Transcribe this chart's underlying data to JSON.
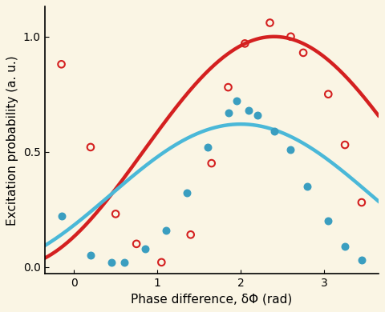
{
  "background_color": "#faf5e4",
  "red_line_color": "#d42020",
  "blue_line_color": "#4ab8d8",
  "red_marker_color": "#d42020",
  "blue_marker_color": "#3a9ec0",
  "red_A": 0.5,
  "red_B": 0.5,
  "red_peak": 2.4,
  "blue_A": 0.31,
  "blue_B": 0.31,
  "blue_peak": 2.0,
  "red_data_x": [
    -0.15,
    0.2,
    0.5,
    0.75,
    1.05,
    1.4,
    1.65,
    1.85,
    2.05,
    2.35,
    2.6,
    2.75,
    3.05,
    3.25,
    3.45
  ],
  "red_data_y": [
    0.88,
    0.52,
    0.23,
    0.1,
    0.02,
    0.14,
    0.45,
    0.78,
    0.97,
    1.06,
    1.0,
    0.93,
    0.75,
    0.53,
    0.28
  ],
  "blue_data_x": [
    -0.15,
    0.2,
    0.45,
    0.6,
    0.85,
    1.1,
    1.35,
    1.6,
    1.85,
    1.95,
    2.1,
    2.2,
    2.4,
    2.6,
    2.8,
    3.05,
    3.25,
    3.45
  ],
  "blue_data_y": [
    0.22,
    0.05,
    0.02,
    0.02,
    0.08,
    0.16,
    0.32,
    0.52,
    0.67,
    0.72,
    0.68,
    0.66,
    0.59,
    0.51,
    0.35,
    0.2,
    0.09,
    0.03
  ],
  "xlabel": "Phase difference, δΦ (rad)",
  "ylabel": "Excitation probability (a. u.)",
  "xlim": [
    -0.35,
    3.65
  ],
  "ylim": [
    -0.03,
    1.13
  ],
  "xticks": [
    0.0,
    1.0,
    2.0,
    3.0
  ],
  "yticks": [
    0.0,
    0.5,
    1.0
  ],
  "linewidth": 3.2,
  "marker_size": 38,
  "label_fontsize": 11,
  "tick_fontsize": 10
}
